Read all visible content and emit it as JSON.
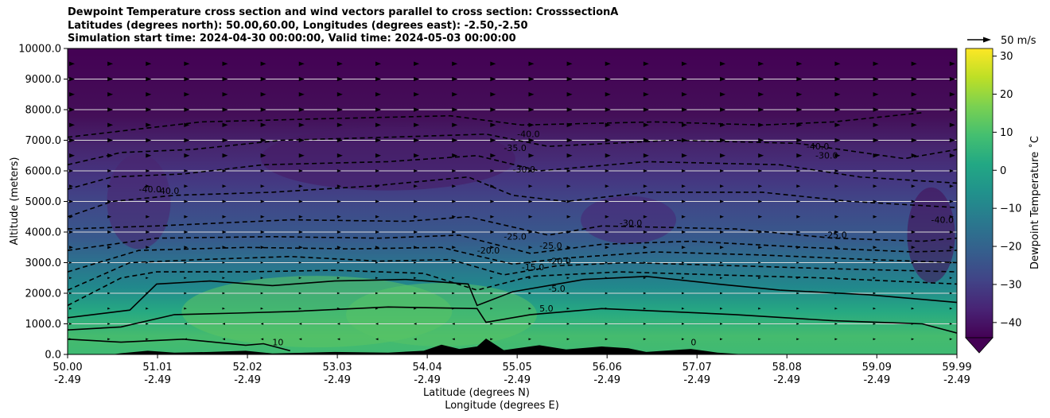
{
  "chart_data": {
    "type": "heatmap",
    "title_lines": [
      "Dewpoint Temperature cross section and wind vectors parallel to cross section: CrosssectionA",
      "Latitudes (degrees north): 50.00,60.00, Longitudes (degrees east): -2.50,-2.50",
      "Simulation start time: 2024-04-30 00:00:00, Valid time: 2024-05-03 00:00:00"
    ],
    "ylabel": "Altitude (meters)",
    "xlabel_lines": [
      "Latitude (degrees N)",
      "Longitude (degrees E)"
    ],
    "ylim": [
      0,
      10000
    ],
    "xlim": [
      50.0,
      59.99
    ],
    "y_ticks": [
      "0.0",
      "1000.0",
      "2000.0",
      "3000.0",
      "4000.0",
      "5000.0",
      "6000.0",
      "7000.0",
      "8000.0",
      "9000.0",
      "10000.0"
    ],
    "x_ticks": [
      {
        "lat": "50.00",
        "lon": "-2.49"
      },
      {
        "lat": "51.01",
        "lon": "-2.49"
      },
      {
        "lat": "52.02",
        "lon": "-2.49"
      },
      {
        "lat": "53.03",
        "lon": "-2.49"
      },
      {
        "lat": "54.04",
        "lon": "-2.49"
      },
      {
        "lat": "55.05",
        "lon": "-2.49"
      },
      {
        "lat": "56.06",
        "lon": "-2.49"
      },
      {
        "lat": "57.07",
        "lon": "-2.49"
      },
      {
        "lat": "58.08",
        "lon": "-2.49"
      },
      {
        "lat": "59.09",
        "lon": "-2.49"
      },
      {
        "lat": "59.99",
        "lon": "-2.49"
      }
    ],
    "grid": "horizontal",
    "colorbar": {
      "label": "Dewpoint Temperature ˚C",
      "range": [
        -44,
        32
      ],
      "ticks": [
        "−40",
        "−30",
        "−20",
        "−10",
        "0",
        "10",
        "20",
        "30"
      ],
      "extend": "min",
      "colormap": "viridis"
    },
    "wind_key": {
      "label": "50 m/s"
    },
    "contour_labels": [
      "-40.0",
      "-35.0",
      "-30.0",
      "-30.0",
      "-40.0",
      "-40.0",
      "-25.0",
      "-25.0",
      "-25.0",
      "-20.0",
      "-20.0",
      "-15.0",
      "-5.0",
      "5.0",
      "10",
      "0",
      "-40.0",
      "-30.0",
      "-40.0"
    ],
    "colors": {
      "low": "#440154",
      "mid": "#21918c",
      "high": "#fde725",
      "terrain": "#000000"
    }
  }
}
